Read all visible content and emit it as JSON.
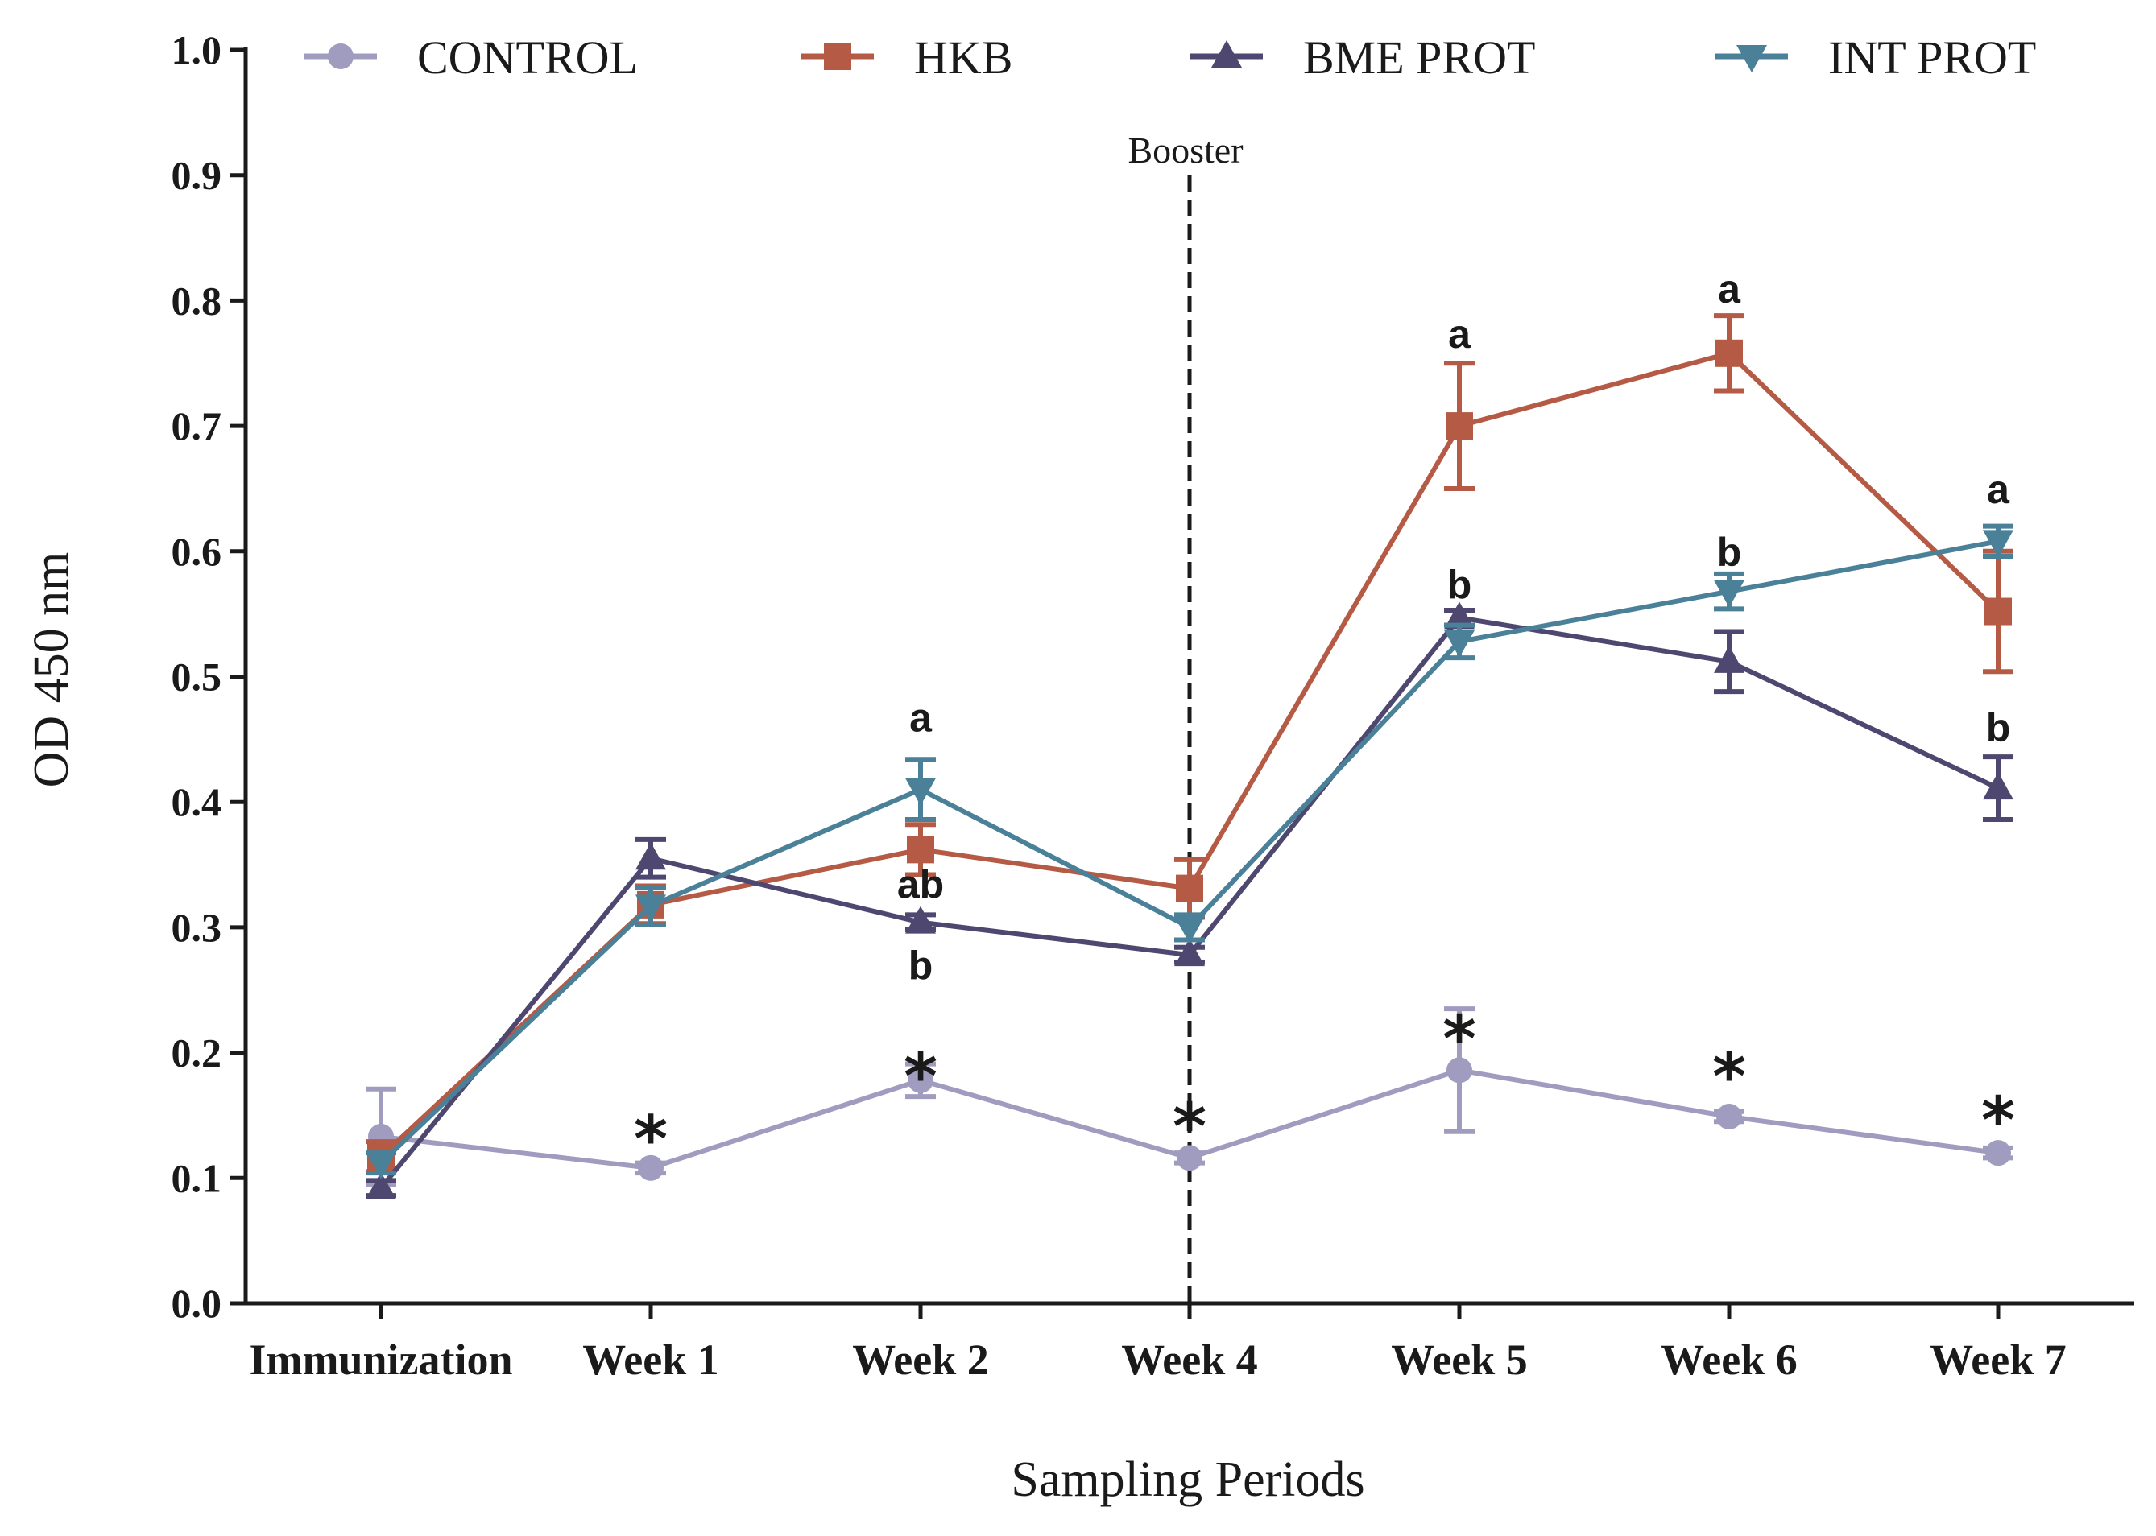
{
  "chart_data": {
    "type": "line",
    "xlabel": "Sampling Periods",
    "ylabel": "OD 450 nm",
    "ylim": [
      0,
      1.0
    ],
    "yticks": [
      "0.0",
      "0.1",
      "0.2",
      "0.3",
      "0.4",
      "0.5",
      "0.6",
      "0.7",
      "0.8",
      "0.9",
      "1.0"
    ],
    "categories": [
      "Immunization",
      "Week 1",
      "Week 2",
      "Week 4",
      "Week 5",
      "Week 6",
      "Week 7"
    ],
    "legend_position": "top",
    "series": [
      {
        "name": "CONTROL",
        "color": "#a09cc0",
        "marker": "circle",
        "values": [
          0.133,
          0.108,
          0.178,
          0.116,
          0.186,
          0.149,
          0.12
        ],
        "errors": [
          0.038,
          0.004,
          0.013,
          0.004,
          0.049,
          0.004,
          0.004
        ]
      },
      {
        "name": "HKB",
        "color": "#b55a44",
        "marker": "square",
        "values": [
          0.117,
          0.318,
          0.362,
          0.331,
          0.7,
          0.758,
          0.552
        ],
        "errors": [
          0.012,
          0.015,
          0.02,
          0.023,
          0.05,
          0.03,
          0.048
        ]
      },
      {
        "name": "BME PROT",
        "color": "#4e4770",
        "marker": "triangle-up",
        "values": [
          0.092,
          0.355,
          0.304,
          0.278,
          0.547,
          0.512,
          0.411
        ],
        "errors": [
          0.006,
          0.015,
          0.006,
          0.006,
          0.006,
          0.024,
          0.025
        ]
      },
      {
        "name": "INT PROT",
        "color": "#4b8198",
        "marker": "triangle-down",
        "values": [
          0.112,
          0.317,
          0.41,
          0.3,
          0.528,
          0.568,
          0.608
        ],
        "errors": [
          0.008,
          0.015,
          0.024,
          0.01,
          0.013,
          0.014,
          0.012
        ]
      }
    ],
    "booster": {
      "label": "Booster",
      "category": "Week 4"
    },
    "letter_annotations": [
      {
        "text": "a",
        "category": "Week 2",
        "y": 0.468
      },
      {
        "text": "ab",
        "category": "Week 2",
        "y": 0.335
      },
      {
        "text": "b",
        "category": "Week 2",
        "y": 0.27
      },
      {
        "text": "a",
        "category": "Week 5",
        "y": 0.774
      },
      {
        "text": "b",
        "category": "Week 5",
        "y": 0.574
      },
      {
        "text": "a",
        "category": "Week 6",
        "y": 0.81
      },
      {
        "text": "b",
        "category": "Week 6",
        "y": 0.6
      },
      {
        "text": "a",
        "category": "Week 7",
        "y": 0.65
      },
      {
        "text": "b",
        "category": "Week 7",
        "y": 0.46
      }
    ],
    "significance_marks": [
      {
        "text": "*",
        "category": "Week 1",
        "y": 0.14
      },
      {
        "text": "*",
        "category": "Week 2",
        "y": 0.19
      },
      {
        "text": "*",
        "category": "Week 4",
        "y": 0.15
      },
      {
        "text": "*",
        "category": "Week 5",
        "y": 0.22
      },
      {
        "text": "*",
        "category": "Week 6",
        "y": 0.19
      },
      {
        "text": "*",
        "category": "Week 7",
        "y": 0.155
      }
    ]
  }
}
